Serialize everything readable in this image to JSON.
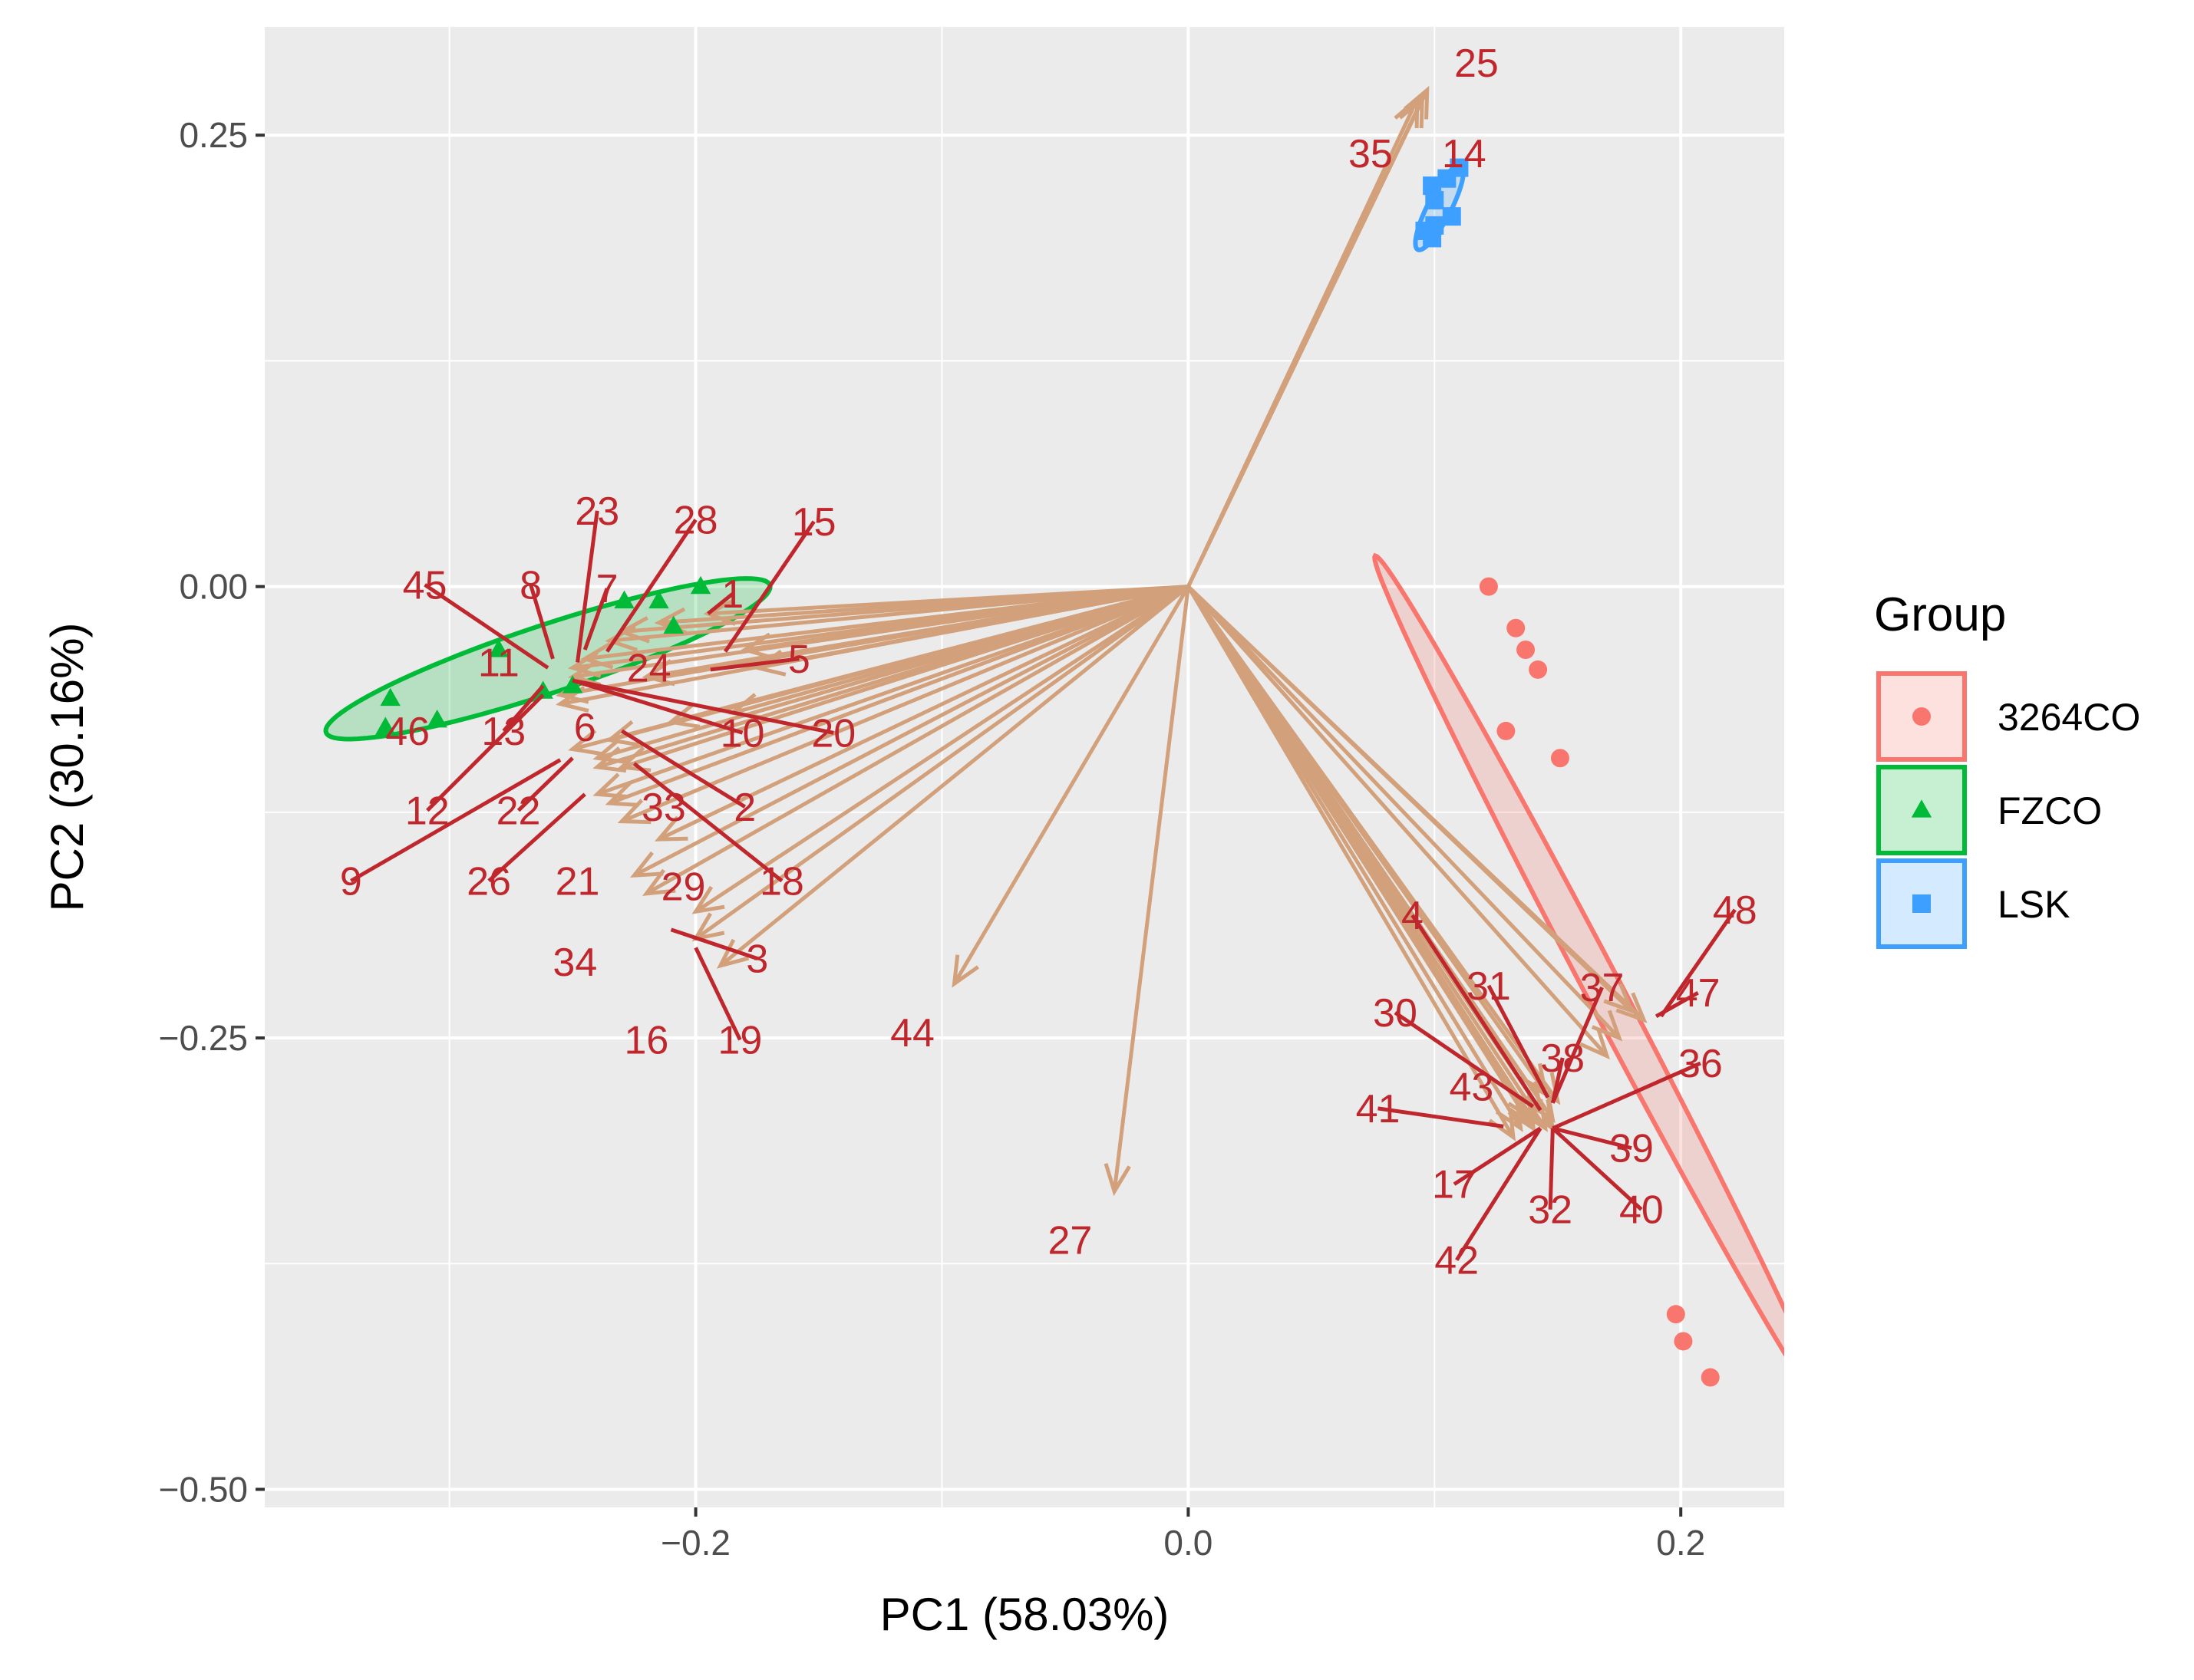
{
  "chart_data": {
    "type": "scatter",
    "subtype": "PCA biplot",
    "xlabel": "PC1 (58.03%)",
    "ylabel": "PC2 (30.16%)",
    "xlim": [
      -0.375,
      0.242
    ],
    "ylim": [
      -0.51,
      0.31
    ],
    "x_ticks": [
      -0.2,
      0.0,
      0.2
    ],
    "x_tick_labels": [
      "−0.2",
      "0.0",
      "0.2"
    ],
    "y_ticks": [
      0.25,
      0.0,
      -0.25,
      -0.5
    ],
    "y_tick_labels": [
      "0.25",
      "0.00",
      "−0.25",
      "−0.50"
    ],
    "grid": true,
    "legend": {
      "title": "Group",
      "position": "right",
      "entries": [
        {
          "name": "3264CO",
          "shape": "circle",
          "color": "#f8766d"
        },
        {
          "name": "FZCO",
          "shape": "triangle",
          "color": "#00ba38"
        },
        {
          "name": "LSK",
          "shape": "square",
          "color": "#3d9fff"
        }
      ]
    },
    "colors": {
      "arrow": "#d2a07a",
      "label": "#c0272d",
      "panel": "#ebebeb",
      "grid": "#ffffff",
      "3264CO": "#f8766d",
      "FZCO": "#00ba38",
      "LSK": "#3d9fff"
    },
    "groups": [
      {
        "name": "3264CO",
        "points": [
          [
            0.122,
            0.0
          ],
          [
            0.133,
            -0.023
          ],
          [
            0.137,
            -0.035
          ],
          [
            0.142,
            -0.046
          ],
          [
            0.129,
            -0.08
          ],
          [
            0.151,
            -0.095
          ],
          [
            0.198,
            -0.403
          ],
          [
            0.201,
            -0.418
          ],
          [
            0.212,
            -0.438
          ]
        ],
        "ellipse": {
          "center": [
            0.167,
            -0.219
          ],
          "semi_major": 0.253,
          "semi_minor": 0.0077,
          "angle_deg": -68.9
        }
      },
      {
        "name": "FZCO",
        "points": [
          [
            -0.198,
            0.0
          ],
          [
            -0.215,
            -0.008
          ],
          [
            -0.229,
            -0.008
          ],
          [
            -0.209,
            -0.022
          ],
          [
            -0.28,
            -0.035
          ],
          [
            -0.25,
            -0.055
          ],
          [
            -0.262,
            -0.058
          ],
          [
            -0.305,
            -0.074
          ],
          [
            -0.324,
            -0.062
          ],
          [
            -0.326,
            -0.078
          ]
        ],
        "ellipse": {
          "center": [
            -0.26,
            -0.04
          ],
          "semi_major": 0.099,
          "semi_minor": 0.018,
          "angle_deg": 24.7
        }
      },
      {
        "name": "LSK",
        "points": [
          [
            0.11,
            0.232
          ],
          [
            0.105,
            0.226
          ],
          [
            0.099,
            0.222
          ],
          [
            0.1,
            0.214
          ],
          [
            0.107,
            0.205
          ],
          [
            0.1,
            0.2
          ],
          [
            0.096,
            0.197
          ],
          [
            0.099,
            0.193
          ]
        ],
        "ellipse": {
          "center": [
            0.102,
            0.21
          ],
          "semi_major": 0.025,
          "semi_minor": 0.005,
          "angle_deg": 70
        }
      }
    ],
    "loadings": [
      {
        "var": "1",
        "x": -0.195,
        "y": -0.015
      },
      {
        "var": "2",
        "x": -0.24,
        "y": -0.115
      },
      {
        "var": "3",
        "x": -0.2,
        "y": -0.195
      },
      {
        "var": "4",
        "x": 0.143,
        "y": -0.29
      },
      {
        "var": "5",
        "x": -0.175,
        "y": -0.045
      },
      {
        "var": "6",
        "x": -0.235,
        "y": -0.085
      },
      {
        "var": "7",
        "x": -0.235,
        "y": -0.03
      },
      {
        "var": "8",
        "x": -0.245,
        "y": -0.04
      },
      {
        "var": "9",
        "x": -0.24,
        "y": -0.095
      },
      {
        "var": "10",
        "x": -0.21,
        "y": -0.075
      },
      {
        "var": "11",
        "x": -0.25,
        "y": -0.045
      },
      {
        "var": "12",
        "x": -0.24,
        "y": -0.1
      },
      {
        "var": "13",
        "x": -0.255,
        "y": -0.065
      },
      {
        "var": "14",
        "x": 0.095,
        "y": 0.27
      },
      {
        "var": "15",
        "x": -0.18,
        "y": -0.035
      },
      {
        "var": "16",
        "x": -0.2,
        "y": -0.18
      },
      {
        "var": "17",
        "x": 0.14,
        "y": -0.3
      },
      {
        "var": "18",
        "x": -0.215,
        "y": -0.14
      },
      {
        "var": "19",
        "x": -0.19,
        "y": -0.21
      },
      {
        "var": "20",
        "x": -0.185,
        "y": -0.07
      },
      {
        "var": "21",
        "x": -0.23,
        "y": -0.13
      },
      {
        "var": "22",
        "x": -0.25,
        "y": -0.09
      },
      {
        "var": "23",
        "x": -0.23,
        "y": -0.025
      },
      {
        "var": "24",
        "x": -0.22,
        "y": -0.05
      },
      {
        "var": "25",
        "x": 0.097,
        "y": 0.275
      },
      {
        "var": "26",
        "x": -0.235,
        "y": -0.12
      },
      {
        "var": "27",
        "x": -0.03,
        "y": -0.335
      },
      {
        "var": "28",
        "x": -0.215,
        "y": -0.02
      },
      {
        "var": "29",
        "x": -0.225,
        "y": -0.16
      },
      {
        "var": "30",
        "x": 0.14,
        "y": -0.295
      },
      {
        "var": "31",
        "x": 0.145,
        "y": -0.28
      },
      {
        "var": "32",
        "x": 0.148,
        "y": -0.3
      },
      {
        "var": "33",
        "x": -0.23,
        "y": -0.1
      },
      {
        "var": "34",
        "x": -0.22,
        "y": -0.17
      },
      {
        "var": "35",
        "x": 0.093,
        "y": 0.27
      },
      {
        "var": "36",
        "x": 0.17,
        "y": -0.26
      },
      {
        "var": "37",
        "x": 0.175,
        "y": -0.25
      },
      {
        "var": "38",
        "x": 0.15,
        "y": -0.285
      },
      {
        "var": "39",
        "x": 0.148,
        "y": -0.295
      },
      {
        "var": "40",
        "x": 0.145,
        "y": -0.3
      },
      {
        "var": "41",
        "x": 0.135,
        "y": -0.3
      },
      {
        "var": "42",
        "x": 0.132,
        "y": -0.305
      },
      {
        "var": "43",
        "x": 0.14,
        "y": -0.298
      },
      {
        "var": "44",
        "x": -0.095,
        "y": -0.22
      },
      {
        "var": "45",
        "x": -0.25,
        "y": -0.05
      },
      {
        "var": "46",
        "x": -0.255,
        "y": -0.06
      },
      {
        "var": "47",
        "x": 0.18,
        "y": -0.235
      },
      {
        "var": "48",
        "x": 0.185,
        "y": -0.24
      }
    ],
    "labels": [
      {
        "text": "1",
        "lx": -0.185,
        "ly": -0.004,
        "ax": -0.195,
        "ay": -0.015
      },
      {
        "text": "45",
        "lx": -0.31,
        "ly": 0.001,
        "ax": -0.26,
        "ay": -0.045
      },
      {
        "text": "8",
        "lx": -0.267,
        "ly": 0.001,
        "ax": -0.258,
        "ay": -0.04
      },
      {
        "text": "7",
        "lx": -0.236,
        "ly": -0.001,
        "ax": -0.245,
        "ay": -0.035
      },
      {
        "text": "23",
        "lx": -0.24,
        "ly": 0.042,
        "ax": -0.248,
        "ay": -0.042
      },
      {
        "text": "28",
        "lx": -0.2,
        "ly": 0.037,
        "ax": -0.236,
        "ay": -0.036
      },
      {
        "text": "15",
        "lx": -0.152,
        "ly": 0.036,
        "ax": -0.188,
        "ay": -0.036
      },
      {
        "text": "11",
        "lx": -0.28,
        "ly": -0.042,
        "ax": null,
        "ay": null
      },
      {
        "text": "24",
        "lx": -0.219,
        "ly": -0.045,
        "ax": null,
        "ay": null
      },
      {
        "text": "5",
        "lx": -0.158,
        "ly": -0.04,
        "ax": -0.194,
        "ay": -0.046
      },
      {
        "text": "46",
        "lx": -0.317,
        "ly": -0.08,
        "ax": null,
        "ay": null
      },
      {
        "text": "13",
        "lx": -0.278,
        "ly": -0.08,
        "ax": -0.262,
        "ay": -0.055
      },
      {
        "text": "6",
        "lx": -0.245,
        "ly": -0.078,
        "ax": null,
        "ay": null
      },
      {
        "text": "10",
        "lx": -0.181,
        "ly": -0.081,
        "ax": -0.25,
        "ay": -0.052
      },
      {
        "text": "20",
        "lx": -0.144,
        "ly": -0.081,
        "ax": -0.25,
        "ay": -0.052
      },
      {
        "text": "12",
        "lx": -0.309,
        "ly": -0.124,
        "ax": -0.262,
        "ay": -0.06
      },
      {
        "text": "22",
        "lx": -0.272,
        "ly": -0.124,
        "ax": -0.25,
        "ay": -0.095
      },
      {
        "text": "33",
        "lx": -0.213,
        "ly": -0.122,
        "ax": null,
        "ay": null
      },
      {
        "text": "2",
        "lx": -0.18,
        "ly": -0.122,
        "ax": -0.23,
        "ay": -0.08
      },
      {
        "text": "9",
        "lx": -0.34,
        "ly": -0.163,
        "ax": -0.255,
        "ay": -0.096
      },
      {
        "text": "26",
        "lx": -0.284,
        "ly": -0.163,
        "ax": -0.245,
        "ay": -0.115
      },
      {
        "text": "21",
        "lx": -0.248,
        "ly": -0.163,
        "ax": null,
        "ay": null
      },
      {
        "text": "29",
        "lx": -0.205,
        "ly": -0.166,
        "ax": null,
        "ay": null
      },
      {
        "text": "18",
        "lx": -0.165,
        "ly": -0.163,
        "ax": -0.225,
        "ay": -0.098
      },
      {
        "text": "34",
        "lx": -0.249,
        "ly": -0.208,
        "ax": null,
        "ay": null
      },
      {
        "text": "3",
        "lx": -0.175,
        "ly": -0.206,
        "ax": -0.21,
        "ay": -0.19
      },
      {
        "text": "16",
        "lx": -0.22,
        "ly": -0.251,
        "ax": null,
        "ay": null
      },
      {
        "text": "19",
        "lx": -0.182,
        "ly": -0.251,
        "ax": -0.2,
        "ay": -0.2
      },
      {
        "text": "44",
        "lx": -0.112,
        "ly": -0.247,
        "ax": null,
        "ay": null
      },
      {
        "text": "27",
        "lx": -0.048,
        "ly": -0.362,
        "ax": null,
        "ay": null
      },
      {
        "text": "25",
        "lx": 0.117,
        "ly": 0.29,
        "ax": null,
        "ay": null
      },
      {
        "text": "35",
        "lx": 0.074,
        "ly": 0.24,
        "ax": null,
        "ay": null
      },
      {
        "text": "14",
        "lx": 0.112,
        "ly": 0.24,
        "ax": null,
        "ay": null
      },
      {
        "text": "4",
        "lx": 0.091,
        "ly": -0.182,
        "ax": 0.143,
        "ay": -0.29
      },
      {
        "text": "31",
        "lx": 0.122,
        "ly": -0.221,
        "ax": 0.146,
        "ay": -0.283
      },
      {
        "text": "30",
        "lx": 0.084,
        "ly": -0.236,
        "ax": 0.14,
        "ay": -0.288
      },
      {
        "text": "37",
        "lx": 0.168,
        "ly": -0.222,
        "ax": 0.148,
        "ay": -0.286
      },
      {
        "text": "47",
        "lx": 0.207,
        "ly": -0.225,
        "ax": 0.19,
        "ay": -0.238
      },
      {
        "text": "48",
        "lx": 0.222,
        "ly": -0.179,
        "ax": 0.192,
        "ay": -0.238
      },
      {
        "text": "38",
        "lx": 0.152,
        "ly": -0.261,
        "ax": 0.148,
        "ay": -0.286
      },
      {
        "text": "36",
        "lx": 0.208,
        "ly": -0.264,
        "ax": 0.148,
        "ay": -0.3
      },
      {
        "text": "43",
        "lx": 0.115,
        "ly": -0.277,
        "ax": null,
        "ay": null
      },
      {
        "text": "41",
        "lx": 0.077,
        "ly": -0.289,
        "ax": 0.128,
        "ay": -0.299
      },
      {
        "text": "39",
        "lx": 0.18,
        "ly": -0.311,
        "ax": 0.148,
        "ay": -0.3
      },
      {
        "text": "17",
        "lx": 0.108,
        "ly": -0.331,
        "ax": 0.143,
        "ay": -0.3
      },
      {
        "text": "32",
        "lx": 0.147,
        "ly": -0.345,
        "ax": 0.148,
        "ay": -0.3
      },
      {
        "text": "40",
        "lx": 0.184,
        "ly": -0.345,
        "ax": 0.148,
        "ay": -0.3
      },
      {
        "text": "42",
        "lx": 0.109,
        "ly": -0.373,
        "ax": 0.143,
        "ay": -0.3
      }
    ]
  }
}
